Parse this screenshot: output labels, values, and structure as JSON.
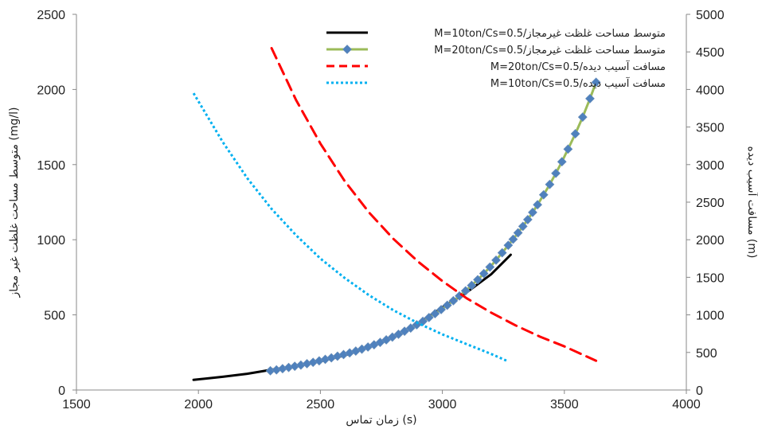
{
  "chart_data": {
    "type": "line",
    "xlabel": "زمان تماس (s)",
    "ylabel_left": "متوسط مساحت غلظت غیر مجاز (mg/l)",
    "ylabel_right": "مسافت آسیب دیده (m)",
    "xlim": [
      1500,
      4000
    ],
    "ylim_left": [
      0,
      2500
    ],
    "ylim_right": [
      0,
      5000
    ],
    "x_ticks": [
      "1500",
      "2000",
      "2500",
      "3000",
      "3500",
      "4000"
    ],
    "y_ticks_left": [
      "0",
      "500",
      "1000",
      "1500",
      "2000",
      "2500"
    ],
    "y_ticks_right": [
      "0",
      "500",
      "1000",
      "1500",
      "2000",
      "2500",
      "3000",
      "3500",
      "4000",
      "4500",
      "5000"
    ],
    "grid": false,
    "legend_position": "top-right",
    "series": [
      {
        "name": "M=10ton/Cs=0.5/متوسط مساحت غلظت غیرمجاز",
        "axis": "left",
        "color": "#000000",
        "style": "solid",
        "marker": "none",
        "x": [
          1980,
          2100,
          2200,
          2300,
          2400,
          2500,
          2600,
          2700,
          2800,
          2900,
          3000,
          3100,
          3200,
          3280
        ],
        "y": [
          68,
          88,
          108,
          135,
          160,
          190,
          230,
          285,
          355,
          440,
          550,
          650,
          770,
          900
        ]
      },
      {
        "name": "M=20ton/Cs=0.5/متوسط مساحت غلظت غیرمجاز",
        "axis": "left",
        "color": "#9BBB59",
        "style": "solid",
        "marker": "diamond",
        "marker_color": "#4F81BD",
        "x": [
          2295,
          2320,
          2345,
          2370,
          2395,
          2420,
          2445,
          2470,
          2495,
          2520,
          2545,
          2570,
          2595,
          2620,
          2645,
          2670,
          2695,
          2720,
          2745,
          2770,
          2795,
          2820,
          2845,
          2870,
          2895,
          2920,
          2945,
          2970,
          2995,
          3020,
          3045,
          3070,
          3095,
          3120,
          3145,
          3170,
          3195,
          3220,
          3245,
          3270,
          3290,
          3310,
          3330,
          3350,
          3370,
          3390,
          3415,
          3440,
          3465,
          3490,
          3515,
          3545,
          3575,
          3605,
          3630
        ],
        "y": [
          128,
          134,
          142,
          150,
          158,
          166,
          175,
          184,
          194,
          204,
          214,
          225,
          236,
          247,
          259,
          272,
          286,
          301,
          317,
          334,
          352,
          371,
          391,
          412,
          434,
          457,
          482,
          508,
          535,
          564,
          594,
          626,
          660,
          696,
          734,
          775,
          818,
          864,
          913,
          963,
          1003,
          1046,
          1089,
          1134,
          1182,
          1233,
          1299,
          1368,
          1442,
          1519,
          1603,
          1705,
          1816,
          1939,
          2048
        ]
      },
      {
        "name": "M=20ton/Cs=0.5/مسافت آسیب دیده",
        "axis": "right",
        "color": "#FF0000",
        "style": "dashed",
        "marker": "none",
        "x": [
          2300,
          2400,
          2500,
          2600,
          2700,
          2800,
          2900,
          3000,
          3100,
          3200,
          3300,
          3400,
          3500,
          3630
        ],
        "y": [
          4550,
          3860,
          3280,
          2780,
          2360,
          2010,
          1710,
          1450,
          1220,
          1030,
          860,
          710,
          580,
          390
        ]
      },
      {
        "name": "M=10ton/Cs=0.5/مسافت آسیب دیده",
        "axis": "right",
        "color": "#00B0F0",
        "style": "dotted",
        "marker": "none",
        "x": [
          1980,
          2100,
          2200,
          2300,
          2400,
          2500,
          2600,
          2700,
          2800,
          2900,
          3000,
          3100,
          3200,
          3270
        ],
        "y": [
          3950,
          3300,
          2820,
          2410,
          2060,
          1750,
          1490,
          1260,
          1060,
          890,
          740,
          610,
          480,
          380
        ]
      }
    ]
  }
}
